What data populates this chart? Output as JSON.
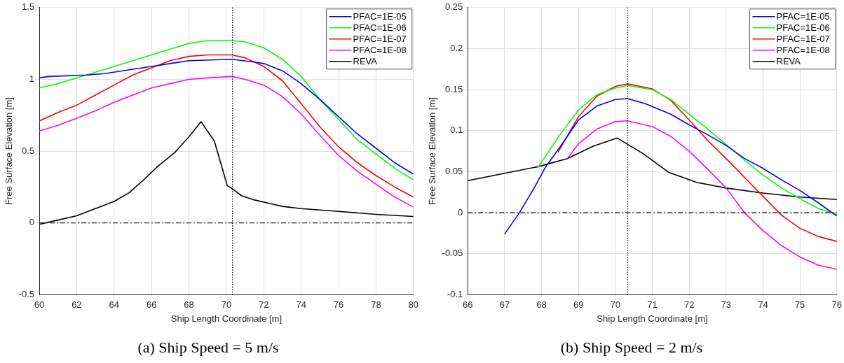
{
  "chart_data": [
    {
      "type": "line",
      "title": "(a) Ship Speed = 5 m/s",
      "xlabel": "Ship Length Coordinate [m]",
      "ylabel": "Free Surface Elevation [m]",
      "xlim": [
        60,
        80
      ],
      "ylim": [
        -0.5,
        1.5
      ],
      "xticks": [
        60,
        62,
        64,
        66,
        68,
        70,
        72,
        74,
        76,
        78,
        80
      ],
      "yticks": [
        -0.5,
        0,
        0.5,
        1,
        1.5
      ],
      "grid": true,
      "legend": "top right",
      "marker": "none",
      "line_style": "solid",
      "ref_lines": [
        {
          "axis": "x",
          "value": 70.33,
          "color": "#000000",
          "line_style": "dotted"
        },
        {
          "axis": "y",
          "value": 0,
          "color": "#000000",
          "line_style": "dashed"
        }
      ],
      "series": [
        {
          "name": "PFAC=1E-05",
          "color": "#0000ff",
          "x": [
            60,
            60.5,
            62.5,
            63.5,
            65,
            66,
            67,
            68,
            70.3,
            71.5,
            72,
            73,
            74,
            75,
            76,
            77,
            78,
            79,
            80
          ],
          "values": [
            1.01,
            1.02,
            1.03,
            1.04,
            1.07,
            1.09,
            1.11,
            1.13,
            1.14,
            1.12,
            1.11,
            1.06,
            0.97,
            0.86,
            0.74,
            0.62,
            0.52,
            0.42,
            0.34
          ]
        },
        {
          "name": "PFAC=1E-06",
          "color": "#00ff00",
          "x": [
            60,
            61,
            62,
            63,
            64,
            65,
            66,
            67,
            68,
            69,
            70.3,
            71,
            72,
            73,
            74,
            75,
            76,
            77,
            78,
            79,
            80
          ],
          "values": [
            0.94,
            0.97,
            1.01,
            1.05,
            1.09,
            1.13,
            1.17,
            1.21,
            1.25,
            1.27,
            1.27,
            1.26,
            1.22,
            1.14,
            1.02,
            0.86,
            0.72,
            0.58,
            0.48,
            0.38,
            0.3
          ]
        },
        {
          "name": "PFAC=1E-07",
          "color": "#ff0000",
          "x": [
            60,
            61,
            62,
            63,
            64,
            65,
            66,
            67,
            68,
            69,
            70.3,
            71,
            72,
            73,
            74,
            75,
            76,
            77,
            78,
            79,
            80
          ],
          "values": [
            0.71,
            0.77,
            0.82,
            0.89,
            0.96,
            1.03,
            1.08,
            1.13,
            1.16,
            1.17,
            1.17,
            1.15,
            1.09,
            0.99,
            0.83,
            0.67,
            0.53,
            0.42,
            0.33,
            0.25,
            0.18
          ]
        },
        {
          "name": "PFAC=1E-08",
          "color": "#ff00ff",
          "x": [
            60,
            61,
            62,
            63,
            64,
            65,
            66,
            67,
            68,
            69,
            70.3,
            71,
            72,
            73,
            74,
            75,
            76,
            77,
            78,
            79,
            80
          ],
          "values": [
            0.64,
            0.68,
            0.73,
            0.78,
            0.84,
            0.89,
            0.94,
            0.97,
            1.0,
            1.01,
            1.02,
            1.0,
            0.96,
            0.88,
            0.76,
            0.61,
            0.47,
            0.36,
            0.27,
            0.18,
            0.11
          ]
        },
        {
          "name": "REVA",
          "color": "#000000",
          "x": [
            60,
            61,
            62,
            63,
            64,
            64.8,
            65.5,
            66.3,
            67.24,
            68,
            68.65,
            69.36,
            70.05,
            70.3,
            70.8,
            71.5,
            72.5,
            73,
            74,
            76,
            78,
            80
          ],
          "values": [
            -0.01,
            0.02,
            0.05,
            0.1,
            0.15,
            0.21,
            0.29,
            0.39,
            0.49,
            0.6,
            0.705,
            0.57,
            0.26,
            0.24,
            0.19,
            0.16,
            0.13,
            0.115,
            0.1,
            0.08,
            0.06,
            0.045
          ]
        }
      ]
    },
    {
      "type": "line",
      "title": "(b) Ship Speed = 2 m/s",
      "xlabel": "Ship Length Coordinate [m]",
      "ylabel": "Free Surface Elevation [m]",
      "xlim": [
        66,
        76
      ],
      "ylim": [
        -0.1,
        0.25
      ],
      "xticks": [
        66,
        67,
        68,
        69,
        70,
        71,
        72,
        73,
        74,
        75,
        76
      ],
      "yticks": [
        -0.1,
        -0.05,
        0,
        0.05,
        0.1,
        0.15,
        0.2,
        0.25
      ],
      "grid": true,
      "legend": "top right",
      "marker": "none",
      "line_style": "solid",
      "ref_lines": [
        {
          "axis": "x",
          "value": 70.33,
          "color": "#000000",
          "line_style": "dotted"
        },
        {
          "axis": "y",
          "value": 0,
          "color": "#000000",
          "line_style": "dashed"
        }
      ],
      "series": [
        {
          "name": "PFAC=1E-05",
          "color": "#0000ff",
          "x": [
            67,
            67.4,
            67.8,
            68.1,
            68.5,
            69,
            69.5,
            70,
            70.33,
            70.8,
            71.5,
            72,
            72.5,
            73,
            73.5,
            74,
            74.5,
            75,
            75.5,
            76
          ],
          "values": [
            -0.026,
            0,
            0.03,
            0.055,
            0.08,
            0.113,
            0.13,
            0.138,
            0.139,
            0.133,
            0.12,
            0.107,
            0.095,
            0.082,
            0.066,
            0.054,
            0.04,
            0.027,
            0.012,
            -0.004
          ]
        },
        {
          "name": "PFAC=1E-06",
          "color": "#00ff00",
          "x": [
            67.9,
            68.5,
            69,
            69.5,
            70,
            70.33,
            71,
            71.5,
            72,
            72.5,
            73,
            73.5,
            74,
            74.5,
            75,
            75.5,
            76
          ],
          "values": [
            0.055,
            0.095,
            0.125,
            0.144,
            0.152,
            0.155,
            0.15,
            0.138,
            0.12,
            0.102,
            0.083,
            0.064,
            0.046,
            0.03,
            0.017,
            0.005,
            -0.002
          ]
        },
        {
          "name": "PFAC=1E-07",
          "color": "#ff0000",
          "x": [
            68.45,
            69,
            69.5,
            70,
            70.33,
            71,
            71.5,
            72,
            72.5,
            73,
            73.5,
            74,
            74.5,
            75,
            75.5,
            76
          ],
          "values": [
            0.074,
            0.117,
            0.142,
            0.154,
            0.157,
            0.151,
            0.137,
            0.113,
            0.088,
            0.066,
            0.043,
            0.02,
            -0.003,
            -0.019,
            -0.029,
            -0.035
          ]
        },
        {
          "name": "PFAC=1E-08",
          "color": "#ff00ff",
          "x": [
            68.7,
            69,
            69.5,
            70,
            70.33,
            71,
            71.5,
            72,
            72.5,
            73,
            73.5,
            74,
            74.5,
            75,
            75.5,
            76
          ],
          "values": [
            0.066,
            0.084,
            0.102,
            0.111,
            0.112,
            0.105,
            0.093,
            0.075,
            0.053,
            0.03,
            0,
            -0.022,
            -0.04,
            -0.054,
            -0.064,
            -0.069
          ]
        },
        {
          "name": "REVA",
          "color": "#000000",
          "x": [
            66,
            67,
            67.9,
            68.7,
            69.4,
            70.05,
            70.75,
            71.45,
            72.2,
            73,
            74,
            75,
            76
          ],
          "values": [
            0.039,
            0.048,
            0.056,
            0.066,
            0.081,
            0.091,
            0.072,
            0.049,
            0.037,
            0.03,
            0.024,
            0.019,
            0.016
          ]
        }
      ]
    }
  ]
}
